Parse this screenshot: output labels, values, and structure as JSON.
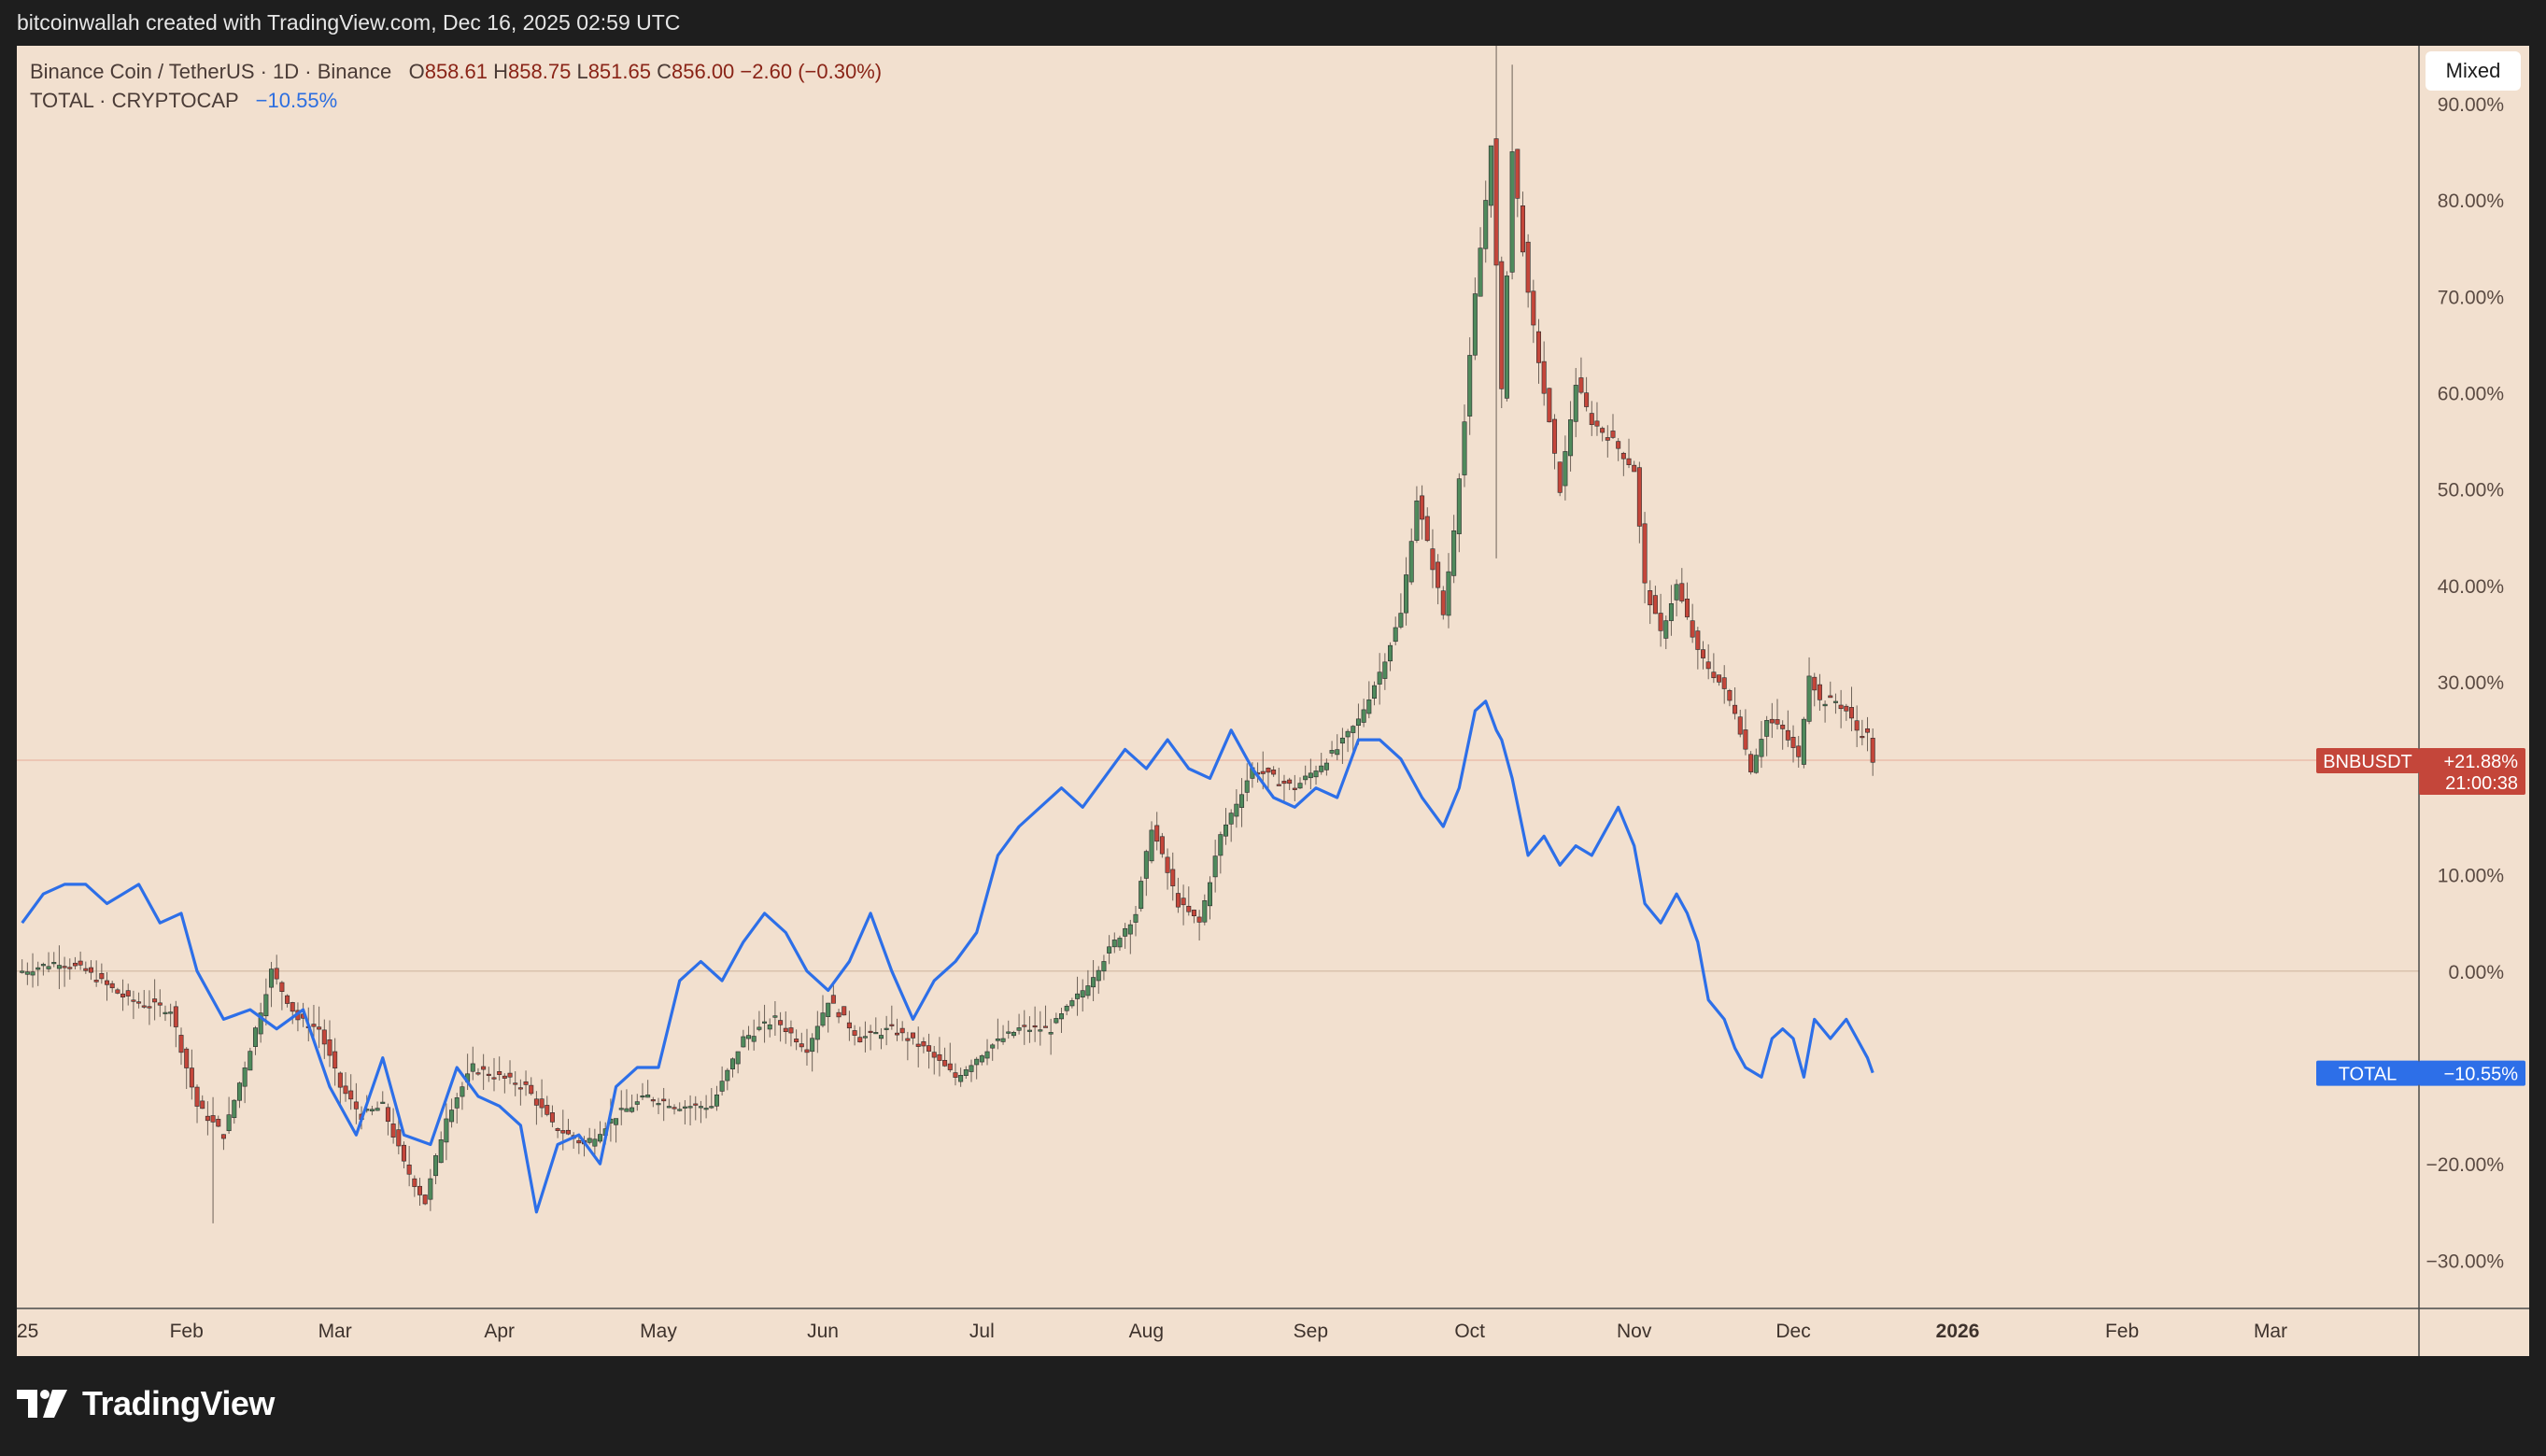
{
  "header": {
    "attribution": "bitcoinwallah created with TradingView.com, Dec 16, 2025 02:59 UTC"
  },
  "legend": {
    "main_title": "Binance Coin / TetherUS · 1D · Binance",
    "o_label": "O",
    "o_value": "858.61",
    "h_label": "H",
    "h_value": "858.75",
    "l_label": "L",
    "l_value": "851.65",
    "c_label": "C",
    "c_value": "856.00",
    "change": "−2.60 (−0.30%)",
    "compare_title": "TOTAL · CRYPTOCAP",
    "compare_value": "−10.55%"
  },
  "toolbar": {
    "scale_mode_label": "Mixed"
  },
  "footer": {
    "logo_text": "TradingView"
  },
  "colors": {
    "up": "#4f8a5c",
    "down": "#c4463a",
    "compare_line": "#2d6fe8",
    "background": "#f2e0cf"
  },
  "chart_data": {
    "type": "line",
    "y_unit": "percent change",
    "y_ticks": [
      90,
      80,
      70,
      60,
      50,
      40,
      30,
      10,
      0,
      -20,
      -30
    ],
    "y_tick_labels": [
      "90.00%",
      "80.00%",
      "70.00%",
      "60.00%",
      "50.00%",
      "40.00%",
      "30.00%",
      "10.00%",
      "0.00%",
      "−20.00%",
      "−30.00%"
    ],
    "x_tick_labels": [
      "25",
      "Feb",
      "Mar",
      "Apr",
      "May",
      "Jun",
      "Jul",
      "Aug",
      "Sep",
      "Oct",
      "Nov",
      "Dec",
      "2026",
      "Feb",
      "Mar"
    ],
    "x_ticks_days": [
      0,
      31,
      59,
      90,
      120,
      151,
      181,
      212,
      243,
      273,
      304,
      334,
      365,
      396,
      424
    ],
    "x_range_days": [
      -1,
      452
    ],
    "ylim": [
      -35,
      96
    ],
    "series": [
      {
        "name": "BNBUSDT",
        "style": "candlestick",
        "badge_label": "BNBUSDT",
        "badge_value": "+21.88%",
        "badge_countdown": "21:00:38",
        "points": [
          [
            0,
            0
          ],
          [
            7,
            1
          ],
          [
            12,
            0
          ],
          [
            20,
            -3
          ],
          [
            28,
            -4
          ],
          [
            33,
            -14
          ],
          [
            38,
            -17
          ],
          [
            43,
            -8
          ],
          [
            47,
            0
          ],
          [
            52,
            -5
          ],
          [
            56,
            -6
          ],
          [
            60,
            -12
          ],
          [
            64,
            -15
          ],
          [
            68,
            -14
          ],
          [
            72,
            -20
          ],
          [
            76,
            -24
          ],
          [
            80,
            -15
          ],
          [
            85,
            -10
          ],
          [
            90,
            -11
          ],
          [
            95,
            -12
          ],
          [
            100,
            -16
          ],
          [
            106,
            -18
          ],
          [
            112,
            -15
          ],
          [
            118,
            -13
          ],
          [
            124,
            -14
          ],
          [
            130,
            -14
          ],
          [
            136,
            -7
          ],
          [
            142,
            -5
          ],
          [
            148,
            -8
          ],
          [
            152,
            -3
          ],
          [
            158,
            -7
          ],
          [
            164,
            -6
          ],
          [
            170,
            -8
          ],
          [
            176,
            -11
          ],
          [
            182,
            -8
          ],
          [
            188,
            -6
          ],
          [
            194,
            -6
          ],
          [
            200,
            -2
          ],
          [
            206,
            3
          ],
          [
            210,
            6
          ],
          [
            213,
            15
          ],
          [
            218,
            7
          ],
          [
            222,
            5
          ],
          [
            226,
            14
          ],
          [
            232,
            21
          ],
          [
            236,
            20
          ],
          [
            240,
            19
          ],
          [
            244,
            21
          ],
          [
            248,
            23
          ],
          [
            252,
            26
          ],
          [
            256,
            31
          ],
          [
            260,
            37
          ],
          [
            263,
            49
          ],
          [
            266,
            42
          ],
          [
            268,
            37
          ],
          [
            270,
            46
          ],
          [
            272,
            57
          ],
          [
            274,
            70
          ],
          [
            276,
            80
          ],
          [
            277,
            86
          ],
          [
            279,
            60
          ],
          [
            281,
            85
          ],
          [
            284,
            70
          ],
          [
            287,
            60
          ],
          [
            290,
            50
          ],
          [
            293,
            61
          ],
          [
            296,
            57
          ],
          [
            300,
            55
          ],
          [
            304,
            52
          ],
          [
            306,
            40
          ],
          [
            309,
            35
          ],
          [
            312,
            40
          ],
          [
            316,
            33
          ],
          [
            320,
            30
          ],
          [
            323,
            27
          ],
          [
            326,
            21
          ],
          [
            329,
            26
          ],
          [
            332,
            25
          ],
          [
            335,
            22
          ],
          [
            337,
            31
          ],
          [
            339,
            28
          ],
          [
            342,
            28
          ],
          [
            344,
            27
          ],
          [
            346,
            25
          ],
          [
            348,
            24.5
          ],
          [
            349,
            21.88
          ]
        ]
      },
      {
        "name": "TOTAL",
        "style": "line",
        "badge_label": "TOTAL",
        "badge_value": "−10.55%",
        "points": [
          [
            0,
            5
          ],
          [
            4,
            8
          ],
          [
            8,
            9
          ],
          [
            12,
            9
          ],
          [
            16,
            7
          ],
          [
            22,
            9
          ],
          [
            26,
            5
          ],
          [
            30,
            6
          ],
          [
            33,
            0
          ],
          [
            38,
            -5
          ],
          [
            43,
            -4
          ],
          [
            48,
            -6
          ],
          [
            53,
            -4
          ],
          [
            58,
            -12
          ],
          [
            63,
            -17
          ],
          [
            68,
            -9
          ],
          [
            72,
            -17
          ],
          [
            77,
            -18
          ],
          [
            82,
            -10
          ],
          [
            86,
            -13
          ],
          [
            90,
            -14
          ],
          [
            94,
            -16
          ],
          [
            97,
            -25
          ],
          [
            101,
            -18
          ],
          [
            105,
            -17
          ],
          [
            109,
            -20
          ],
          [
            112,
            -12
          ],
          [
            116,
            -10
          ],
          [
            120,
            -10
          ],
          [
            124,
            -1
          ],
          [
            128,
            1
          ],
          [
            132,
            -1
          ],
          [
            136,
            3
          ],
          [
            140,
            6
          ],
          [
            144,
            4
          ],
          [
            148,
            0
          ],
          [
            152,
            -2
          ],
          [
            156,
            1
          ],
          [
            160,
            6
          ],
          [
            164,
            0
          ],
          [
            168,
            -5
          ],
          [
            172,
            -1
          ],
          [
            176,
            1
          ],
          [
            180,
            4
          ],
          [
            184,
            12
          ],
          [
            188,
            15
          ],
          [
            192,
            17
          ],
          [
            196,
            19
          ],
          [
            200,
            17
          ],
          [
            204,
            20
          ],
          [
            208,
            23
          ],
          [
            212,
            21
          ],
          [
            216,
            24
          ],
          [
            220,
            21
          ],
          [
            224,
            20
          ],
          [
            228,
            25
          ],
          [
            232,
            21
          ],
          [
            236,
            18
          ],
          [
            240,
            17
          ],
          [
            244,
            19
          ],
          [
            248,
            18
          ],
          [
            252,
            24
          ],
          [
            256,
            24
          ],
          [
            260,
            22
          ],
          [
            264,
            18
          ],
          [
            268,
            15
          ],
          [
            271,
            19
          ],
          [
            274,
            27
          ],
          [
            276,
            28
          ],
          [
            278,
            25
          ],
          [
            279,
            24
          ],
          [
            281,
            20
          ],
          [
            284,
            12
          ],
          [
            287,
            14
          ],
          [
            290,
            11
          ],
          [
            293,
            13
          ],
          [
            296,
            12
          ],
          [
            299,
            15
          ],
          [
            301,
            17
          ],
          [
            304,
            13
          ],
          [
            306,
            7
          ],
          [
            309,
            5
          ],
          [
            312,
            8
          ],
          [
            314,
            6
          ],
          [
            316,
            3
          ],
          [
            318,
            -3
          ],
          [
            321,
            -5
          ],
          [
            323,
            -8
          ],
          [
            325,
            -10
          ],
          [
            328,
            -11
          ],
          [
            330,
            -7
          ],
          [
            332,
            -6
          ],
          [
            334,
            -7
          ],
          [
            336,
            -11
          ],
          [
            338,
            -5
          ],
          [
            341,
            -7
          ],
          [
            344,
            -5
          ],
          [
            346,
            -7
          ],
          [
            348,
            -9
          ],
          [
            349,
            -10.55
          ]
        ]
      }
    ]
  }
}
